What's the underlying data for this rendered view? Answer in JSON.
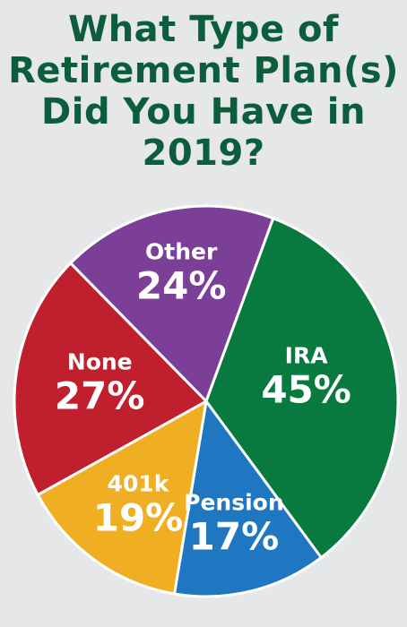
{
  "chart_data": {
    "type": "pie",
    "title_lines": [
      "What Type of",
      "Retirement Plan(s)",
      "Did You Have in",
      "2019?"
    ],
    "title": "What Type of Retirement Plan(s) Did You Have in 2019?",
    "slices": [
      {
        "label": "Other",
        "value_label": "24%",
        "value": 24,
        "color": "#7b3f98"
      },
      {
        "label": "IRA",
        "value_label": "45%",
        "value": 45,
        "color": "#087a3f"
      },
      {
        "label": "Pension",
        "value_label": "17%",
        "value": 17,
        "color": "#1f77c2"
      },
      {
        "label": "401k",
        "value_label": "19%",
        "value": 19,
        "color": "#f0ae22"
      },
      {
        "label": "None",
        "value_label": "27%",
        "value": 27,
        "color": "#c0202e"
      }
    ]
  },
  "colors": {
    "background": "#e6e7e8",
    "title": "#0b5d3b",
    "slice_border": "#ffffff"
  }
}
